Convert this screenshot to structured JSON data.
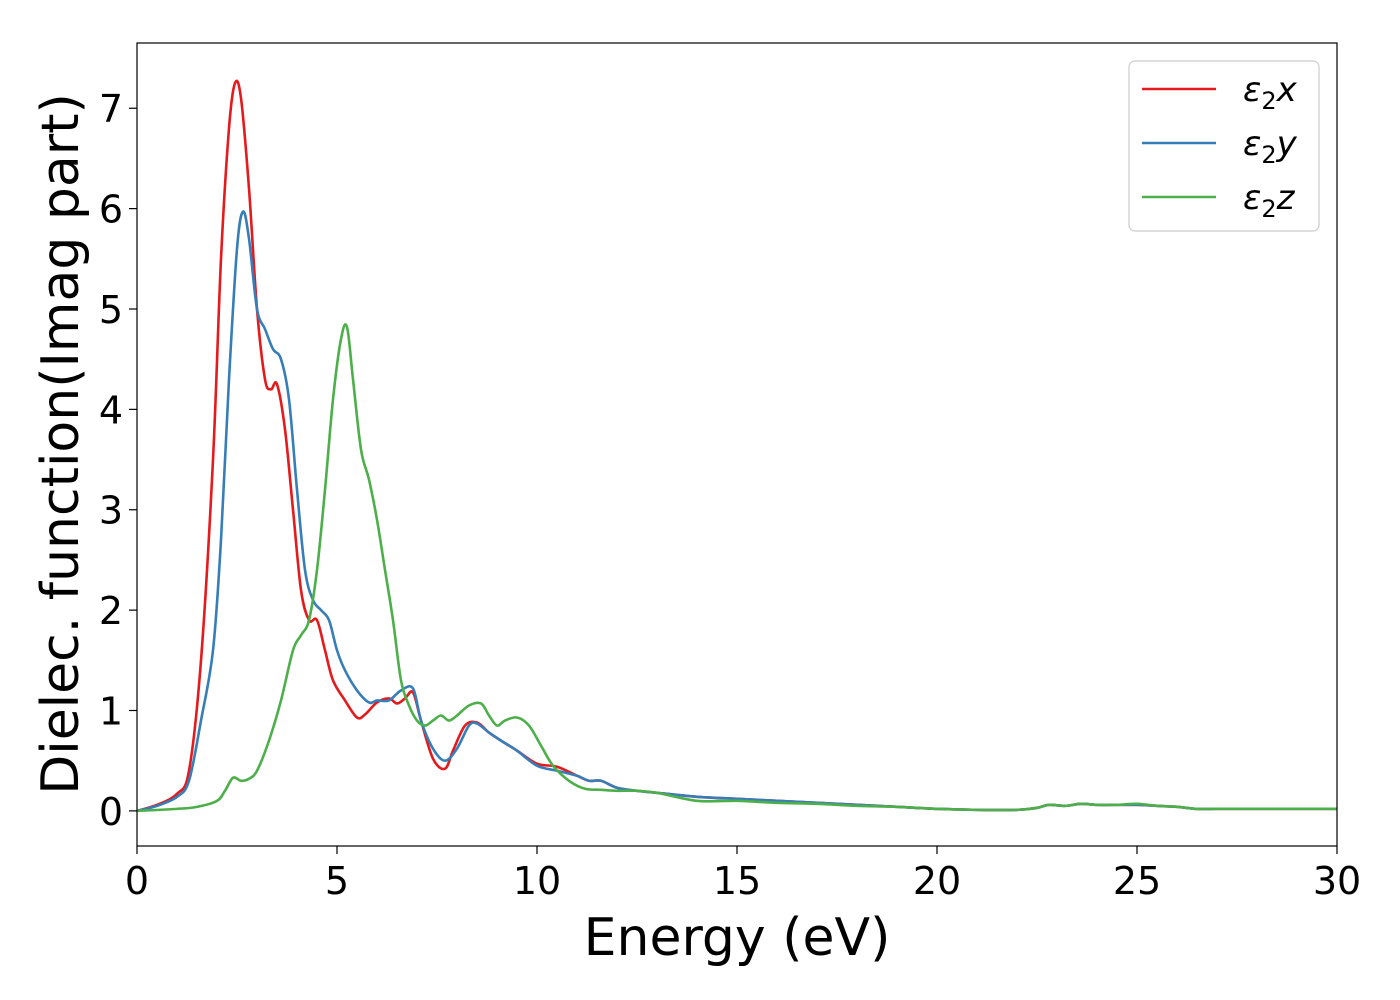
{
  "chart_data": {
    "type": "line",
    "title": "",
    "xlabel": "Energy (eV)",
    "ylabel": "Dielec. function(Imag part)",
    "xlim": [
      0,
      30
    ],
    "ylim": [
      -0.35,
      7.65
    ],
    "xticks": [
      "0",
      "5",
      "10",
      "15",
      "20",
      "25",
      "30"
    ],
    "yticks": [
      "0",
      "1",
      "2",
      "3",
      "4",
      "5",
      "6",
      "7"
    ],
    "grid": false,
    "legend_position": "top-right",
    "series": [
      {
        "name": "ε2x",
        "legend_base": "ε",
        "legend_sub": "2",
        "legend_var": "x",
        "color": "#e41a1c",
        "x": [
          0,
          0.5,
          1.0,
          1.3,
          1.6,
          1.9,
          2.1,
          2.3,
          2.45,
          2.6,
          2.8,
          3.0,
          3.2,
          3.35,
          3.5,
          3.7,
          3.9,
          4.1,
          4.3,
          4.5,
          4.7,
          4.9,
          5.2,
          5.5,
          5.7,
          6.0,
          6.3,
          6.5,
          6.7,
          6.9,
          7.1,
          7.4,
          7.7,
          7.9,
          8.2,
          8.5,
          8.8,
          9.1,
          9.5,
          10.0,
          10.5,
          11.0,
          11.3,
          11.6,
          12.0,
          12.5,
          13.0,
          14.0,
          15.0,
          16.0,
          17.0,
          18.0,
          19.0,
          20.0,
          21.0,
          22.0,
          22.5,
          22.8,
          23.2,
          23.6,
          24.0,
          24.5,
          25.0,
          25.5,
          26.0,
          26.5,
          27.0,
          28.0,
          29.0,
          30.0
        ],
        "y": [
          0,
          0.06,
          0.17,
          0.4,
          1.5,
          3.5,
          5.5,
          6.8,
          7.25,
          7.1,
          6.2,
          5.0,
          4.3,
          4.2,
          4.25,
          3.8,
          3.0,
          2.2,
          1.9,
          1.9,
          1.6,
          1.3,
          1.1,
          0.93,
          0.96,
          1.08,
          1.12,
          1.07,
          1.12,
          1.18,
          0.9,
          0.52,
          0.42,
          0.6,
          0.85,
          0.88,
          0.78,
          0.7,
          0.6,
          0.47,
          0.44,
          0.35,
          0.3,
          0.3,
          0.23,
          0.2,
          0.18,
          0.14,
          0.12,
          0.1,
          0.08,
          0.06,
          0.04,
          0.02,
          0.01,
          0.01,
          0.03,
          0.06,
          0.05,
          0.07,
          0.06,
          0.06,
          0.06,
          0.05,
          0.04,
          0.02,
          0.02,
          0.02,
          0.02,
          0.02
        ]
      },
      {
        "name": "ε2y",
        "legend_base": "ε",
        "legend_sub": "2",
        "legend_var": "y",
        "color": "#377eb8",
        "x": [
          0,
          0.5,
          1.0,
          1.3,
          1.6,
          1.9,
          2.1,
          2.3,
          2.5,
          2.65,
          2.8,
          3.0,
          3.2,
          3.4,
          3.6,
          3.8,
          4.0,
          4.2,
          4.4,
          4.6,
          4.8,
          5.0,
          5.2,
          5.5,
          5.8,
          6.0,
          6.3,
          6.6,
          6.9,
          7.1,
          7.4,
          7.7,
          8.0,
          8.3,
          8.5,
          8.8,
          9.1,
          9.5,
          10.0,
          10.5,
          11.0,
          11.3,
          11.6,
          12.0,
          12.5,
          13.0,
          14.0,
          15.0,
          16.0,
          17.0,
          18.0,
          19.0,
          20.0,
          21.0,
          22.0,
          22.5,
          22.8,
          23.2,
          23.6,
          24.0,
          24.5,
          25.0,
          25.5,
          26.0,
          26.5,
          27.0,
          28.0,
          29.0,
          30.0
        ],
        "y": [
          0,
          0.05,
          0.14,
          0.3,
          0.9,
          1.6,
          2.7,
          4.3,
          5.6,
          5.97,
          5.7,
          5.0,
          4.8,
          4.6,
          4.5,
          4.1,
          3.2,
          2.4,
          2.1,
          2.0,
          1.9,
          1.6,
          1.4,
          1.2,
          1.08,
          1.1,
          1.1,
          1.2,
          1.22,
          0.9,
          0.62,
          0.5,
          0.62,
          0.85,
          0.87,
          0.78,
          0.7,
          0.6,
          0.45,
          0.4,
          0.35,
          0.3,
          0.3,
          0.23,
          0.2,
          0.18,
          0.14,
          0.12,
          0.1,
          0.08,
          0.06,
          0.04,
          0.02,
          0.01,
          0.01,
          0.03,
          0.06,
          0.05,
          0.07,
          0.06,
          0.06,
          0.06,
          0.05,
          0.04,
          0.02,
          0.02,
          0.02,
          0.02,
          0.02
        ]
      },
      {
        "name": "ε2z",
        "legend_base": "ε",
        "legend_sub": "2",
        "legend_var": "z",
        "color": "#4daf4a",
        "x": [
          0,
          1.0,
          1.5,
          2.0,
          2.2,
          2.4,
          2.6,
          2.8,
          3.0,
          3.3,
          3.6,
          3.9,
          4.1,
          4.3,
          4.5,
          4.7,
          4.9,
          5.1,
          5.25,
          5.4,
          5.6,
          5.8,
          6.0,
          6.2,
          6.4,
          6.6,
          6.8,
          7.0,
          7.2,
          7.4,
          7.6,
          7.8,
          8.0,
          8.3,
          8.6,
          8.8,
          9.0,
          9.2,
          9.5,
          9.8,
          10.1,
          10.4,
          10.8,
          11.2,
          11.6,
          12.0,
          12.5,
          13.0,
          14.0,
          15.0,
          16.0,
          17.0,
          18.0,
          19.0,
          20.0,
          21.0,
          22.0,
          22.5,
          22.8,
          23.2,
          23.6,
          24.0,
          24.5,
          25.0,
          25.5,
          26.0,
          26.5,
          27.0,
          28.0,
          29.0,
          30.0
        ],
        "y": [
          0,
          0.02,
          0.04,
          0.1,
          0.2,
          0.33,
          0.3,
          0.32,
          0.4,
          0.7,
          1.1,
          1.6,
          1.75,
          1.9,
          2.4,
          3.2,
          4.1,
          4.7,
          4.82,
          4.3,
          3.6,
          3.3,
          2.9,
          2.4,
          1.9,
          1.3,
          1.05,
          0.9,
          0.85,
          0.9,
          0.95,
          0.9,
          0.95,
          1.05,
          1.07,
          0.95,
          0.85,
          0.9,
          0.93,
          0.85,
          0.65,
          0.45,
          0.3,
          0.22,
          0.21,
          0.2,
          0.2,
          0.18,
          0.1,
          0.1,
          0.08,
          0.07,
          0.05,
          0.04,
          0.02,
          0.01,
          0.01,
          0.03,
          0.06,
          0.05,
          0.07,
          0.06,
          0.06,
          0.07,
          0.05,
          0.04,
          0.02,
          0.02,
          0.02,
          0.02,
          0.02
        ]
      }
    ]
  }
}
